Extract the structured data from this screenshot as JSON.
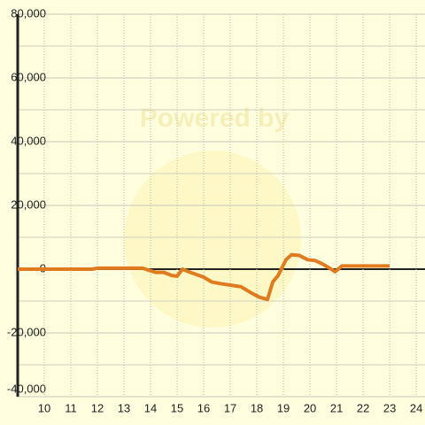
{
  "chart_data": {
    "type": "line",
    "watermark": "Powered by",
    "xlim": [
      9,
      24.33
    ],
    "ylim": [
      -40000,
      80000
    ],
    "xticks": [
      10,
      11,
      12,
      13,
      14,
      15,
      16,
      17,
      18,
      19,
      20,
      21,
      22,
      23,
      24
    ],
    "yticks": [
      {
        "value": -40000,
        "label": "-40,000"
      },
      {
        "value": -20000,
        "label": "-20,000"
      },
      0,
      {
        "value": 20000,
        "label": "20,000"
      },
      {
        "value": 40000,
        "label": "40,000"
      },
      {
        "value": 60000,
        "label": "60,000"
      },
      {
        "value": 80000,
        "label": "80,000"
      }
    ],
    "grid": true,
    "series": [
      {
        "color": "#e07b20",
        "x": [
          9,
          11.8,
          12,
          13.7,
          14,
          14.2,
          14.5,
          14.8,
          15,
          15.2,
          15.5,
          16,
          16.3,
          16.6,
          17,
          17.4,
          17.8,
          18.1,
          18.4,
          18.6,
          18.8,
          19.1,
          19.3,
          19.6,
          19.9,
          20.2,
          20.5,
          20.8,
          20.95,
          21.2,
          22,
          23
        ],
        "values": [
          0,
          0,
          300,
          300,
          -500,
          -1000,
          -1000,
          -2000,
          -2200,
          0,
          -1000,
          -2500,
          -4000,
          -4500,
          -5000,
          -5500,
          -7500,
          -8800,
          -9500,
          -4000,
          -2000,
          3000,
          4500,
          4300,
          3000,
          2700,
          1500,
          0,
          -800,
          1000,
          1000,
          1000
        ]
      }
    ]
  }
}
